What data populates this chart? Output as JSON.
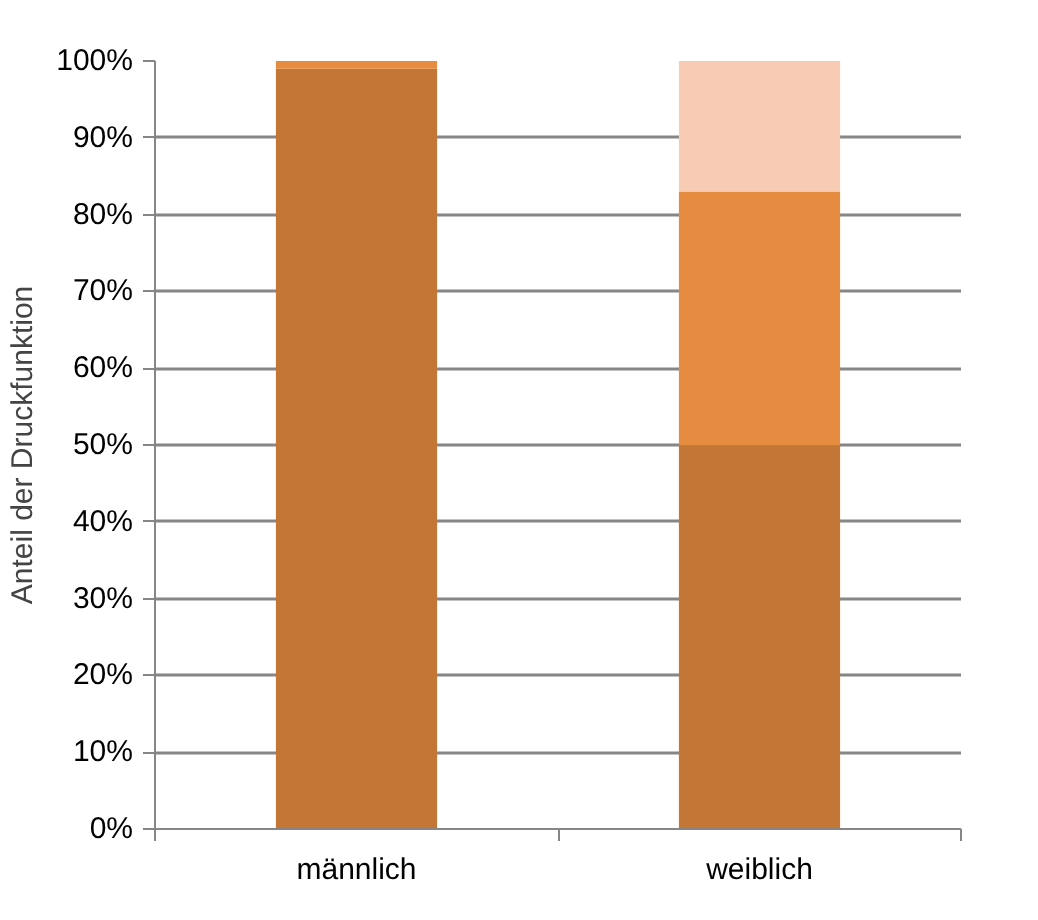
{
  "chart_data": {
    "type": "bar",
    "stacked": true,
    "ylabel": "Anteil der Druckfunktion",
    "categories": [
      "männlich",
      "weiblich"
    ],
    "series": [
      {
        "color": "#c37636",
        "values": [
          99,
          50
        ]
      },
      {
        "color": "#e68c40",
        "values": [
          1,
          33
        ]
      },
      {
        "color": "#f8cbb4",
        "values": [
          0,
          17
        ]
      }
    ],
    "ylim": [
      0,
      100
    ],
    "yticks": [
      {
        "value": 0,
        "label": "0%"
      },
      {
        "value": 10,
        "label": "10%"
      },
      {
        "value": 20,
        "label": "20%"
      },
      {
        "value": 30,
        "label": "30%"
      },
      {
        "value": 40,
        "label": "40%"
      },
      {
        "value": 50,
        "label": "50%"
      },
      {
        "value": 60,
        "label": "60%"
      },
      {
        "value": 70,
        "label": "70%"
      },
      {
        "value": 80,
        "label": "80%"
      },
      {
        "value": 90,
        "label": "90%"
      },
      {
        "value": 100,
        "label": "100%"
      }
    ],
    "grid": "y"
  }
}
